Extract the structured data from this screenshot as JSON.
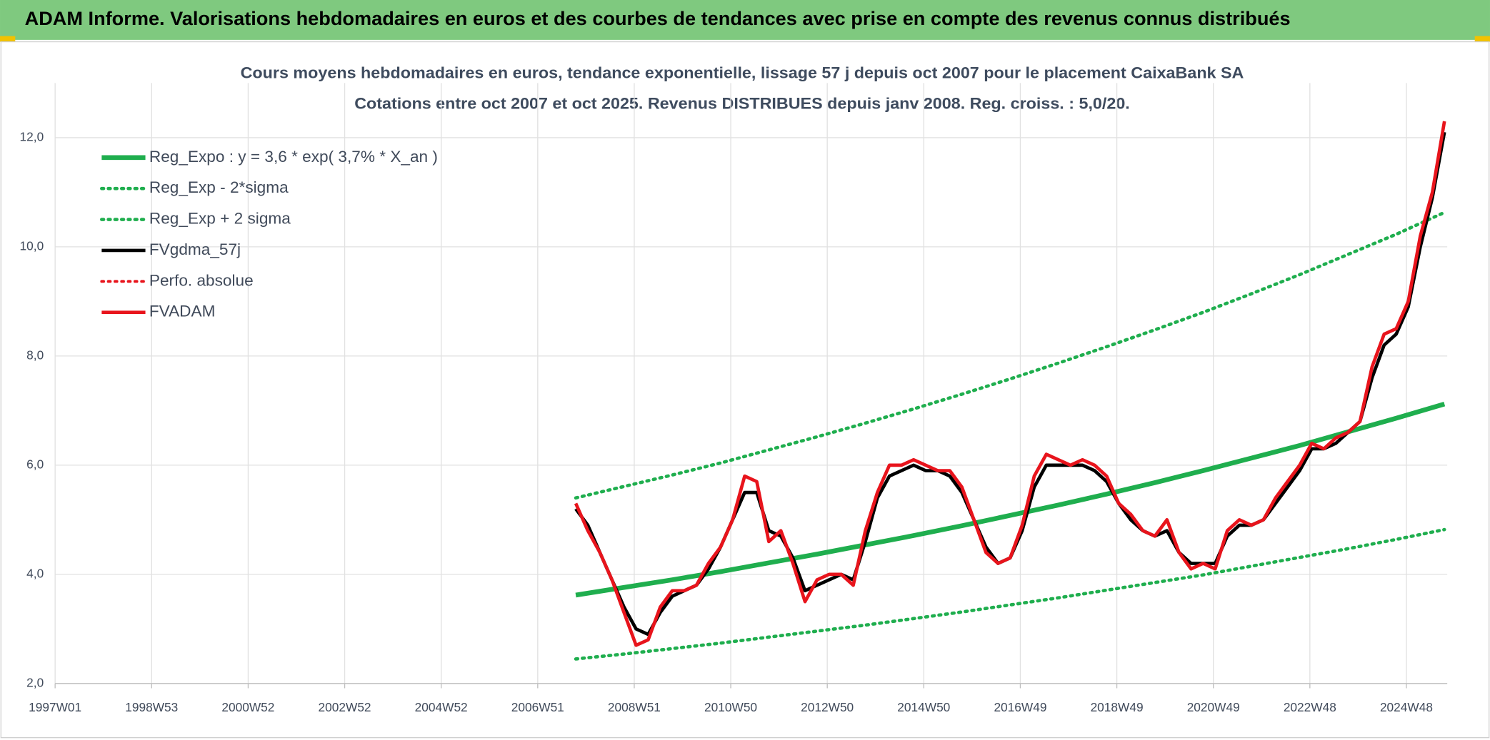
{
  "chart_data": {
    "type": "line",
    "banner": "ADAM Informe. Valorisations hebdomadaires en euros et des courbes de tendances avec prise en compte des revenus connus distribués",
    "title": "Cours moyens hebdomadaires en euros, tendance exponentielle, lissage 57 j depuis oct 2007 pour le placement CaixaBank SA",
    "subtitle": "Cotations entre oct 2007 et oct 2025. Revenus DISTRIBUES depuis janv 2008. Reg. croiss. : 5,0/20.",
    "xlim": [
      0,
      1500
    ],
    "xticks": [
      {
        "value": 0,
        "label": "1997W01"
      },
      {
        "value": 104,
        "label": "1998W53"
      },
      {
        "value": 208,
        "label": "2000W52"
      },
      {
        "value": 312,
        "label": "2002W52"
      },
      {
        "value": 416,
        "label": "2004W52"
      },
      {
        "value": 520,
        "label": "2006W51"
      },
      {
        "value": 624,
        "label": "2008W51"
      },
      {
        "value": 728,
        "label": "2010W50"
      },
      {
        "value": 832,
        "label": "2012W50"
      },
      {
        "value": 936,
        "label": "2014W50"
      },
      {
        "value": 1040,
        "label": "2016W49"
      },
      {
        "value": 1144,
        "label": "2018W49"
      },
      {
        "value": 1248,
        "label": "2020W49"
      },
      {
        "value": 1352,
        "label": "2022W48"
      },
      {
        "value": 1456,
        "label": "2024W48"
      }
    ],
    "ylim": [
      2,
      13
    ],
    "yticks": [
      {
        "value": 2,
        "label": "2,0"
      },
      {
        "value": 4,
        "label": "4,0"
      },
      {
        "value": 6,
        "label": "6,0"
      },
      {
        "value": 8,
        "label": "8,0"
      },
      {
        "value": 10,
        "label": "10,0"
      },
      {
        "value": 12,
        "label": "12,0"
      }
    ],
    "grid": true,
    "legend": "upper left",
    "series": [
      {
        "name": "Reg_Expo : y = 3,6 * exp( 3,7% *  X_an )",
        "color": "#1fae4e",
        "style": "solid",
        "width": 5,
        "x": [
          561,
          613,
          665,
          717,
          769,
          821,
          873,
          925,
          977,
          1029,
          1081,
          1133,
          1185,
          1237,
          1289,
          1341,
          1393,
          1445,
          1497
        ],
        "values": [
          3.62,
          3.76,
          3.9,
          4.05,
          4.21,
          4.37,
          4.54,
          4.71,
          4.89,
          5.08,
          5.27,
          5.47,
          5.68,
          5.9,
          6.13,
          6.36,
          6.61,
          6.86,
          7.12
        ]
      },
      {
        "name": "Reg_Exp - 2*sigma",
        "color": "#1fae4e",
        "style": "dotted",
        "width": 3.5,
        "x": [
          561,
          613,
          665,
          717,
          769,
          821,
          873,
          925,
          977,
          1029,
          1081,
          1133,
          1185,
          1237,
          1289,
          1341,
          1393,
          1445,
          1497
        ],
        "values": [
          2.45,
          2.54,
          2.64,
          2.74,
          2.85,
          2.96,
          3.07,
          3.19,
          3.31,
          3.44,
          3.57,
          3.71,
          3.85,
          3.99,
          4.15,
          4.31,
          4.47,
          4.64,
          4.82
        ]
      },
      {
        "name": "Reg_Exp + 2 sigma",
        "color": "#1fae4e",
        "style": "dotted",
        "width": 3.5,
        "x": [
          561,
          613,
          665,
          717,
          769,
          821,
          873,
          925,
          977,
          1029,
          1081,
          1133,
          1185,
          1237,
          1289,
          1341,
          1393,
          1445,
          1497
        ],
        "values": [
          5.4,
          5.61,
          5.82,
          6.04,
          6.28,
          6.52,
          6.77,
          7.03,
          7.3,
          7.58,
          7.87,
          8.17,
          8.48,
          8.8,
          9.14,
          9.49,
          9.86,
          10.23,
          10.63
        ]
      },
      {
        "name": "FVgdma_57j",
        "color": "#000000",
        "style": "solid",
        "width": 3.5,
        "x": [
          561,
          574,
          587,
          600,
          613,
          626,
          639,
          652,
          665,
          678,
          691,
          704,
          717,
          730,
          743,
          756,
          769,
          782,
          795,
          808,
          821,
          834,
          847,
          860,
          873,
          886,
          899,
          912,
          925,
          938,
          951,
          964,
          977,
          990,
          1003,
          1016,
          1029,
          1042,
          1055,
          1068,
          1081,
          1094,
          1107,
          1120,
          1133,
          1146,
          1159,
          1172,
          1185,
          1198,
          1211,
          1224,
          1237,
          1250,
          1263,
          1276,
          1289,
          1302,
          1315,
          1328,
          1341,
          1354,
          1367,
          1380,
          1393,
          1406,
          1419,
          1432,
          1445,
          1458,
          1471,
          1484,
          1497
        ],
        "values": [
          5.2,
          4.9,
          4.4,
          3.9,
          3.4,
          3.0,
          2.9,
          3.3,
          3.6,
          3.7,
          3.8,
          4.1,
          4.5,
          5.0,
          5.5,
          5.5,
          4.8,
          4.7,
          4.3,
          3.7,
          3.8,
          3.9,
          4.0,
          3.9,
          4.6,
          5.4,
          5.8,
          5.9,
          6.0,
          5.9,
          5.9,
          5.8,
          5.5,
          5.0,
          4.5,
          4.2,
          4.3,
          4.8,
          5.6,
          6.0,
          6.0,
          6.0,
          6.0,
          5.9,
          5.7,
          5.3,
          5.0,
          4.8,
          4.7,
          4.8,
          4.4,
          4.2,
          4.2,
          4.2,
          4.7,
          4.9,
          4.9,
          5.0,
          5.3,
          5.6,
          5.9,
          6.3,
          6.3,
          6.4,
          6.6,
          6.8,
          7.6,
          8.2,
          8.4,
          8.9,
          10.0,
          10.9,
          12.1
        ]
      },
      {
        "name": "Perfo. absolue",
        "color": "#e8141c",
        "style": "dotted",
        "width": 3
      },
      {
        "name": "FVADAM",
        "color": "#e8141c",
        "style": "solid",
        "width": 3.5,
        "x": [
          561,
          574,
          587,
          600,
          613,
          626,
          639,
          652,
          665,
          678,
          691,
          704,
          717,
          730,
          743,
          756,
          769,
          782,
          795,
          808,
          821,
          834,
          847,
          860,
          873,
          886,
          899,
          912,
          925,
          938,
          951,
          964,
          977,
          990,
          1003,
          1016,
          1029,
          1042,
          1055,
          1068,
          1081,
          1094,
          1107,
          1120,
          1133,
          1146,
          1159,
          1172,
          1185,
          1198,
          1211,
          1224,
          1237,
          1250,
          1263,
          1276,
          1289,
          1302,
          1315,
          1328,
          1341,
          1354,
          1367,
          1380,
          1393,
          1406,
          1419,
          1432,
          1445,
          1458,
          1471,
          1484,
          1497
        ],
        "values": [
          5.3,
          4.8,
          4.4,
          3.9,
          3.3,
          2.7,
          2.8,
          3.4,
          3.7,
          3.7,
          3.8,
          4.2,
          4.5,
          5.0,
          5.8,
          5.7,
          4.6,
          4.8,
          4.2,
          3.5,
          3.9,
          4.0,
          4.0,
          3.8,
          4.8,
          5.5,
          6.0,
          6.0,
          6.1,
          6.0,
          5.9,
          5.9,
          5.6,
          5.0,
          4.4,
          4.2,
          4.3,
          4.9,
          5.8,
          6.2,
          6.1,
          6.0,
          6.1,
          6.0,
          5.8,
          5.3,
          5.1,
          4.8,
          4.7,
          5.0,
          4.4,
          4.1,
          4.2,
          4.1,
          4.8,
          5.0,
          4.9,
          5.0,
          5.4,
          5.7,
          6.0,
          6.4,
          6.3,
          6.5,
          6.6,
          6.8,
          7.8,
          8.4,
          8.5,
          9.0,
          10.2,
          11.0,
          12.3
        ]
      }
    ]
  }
}
